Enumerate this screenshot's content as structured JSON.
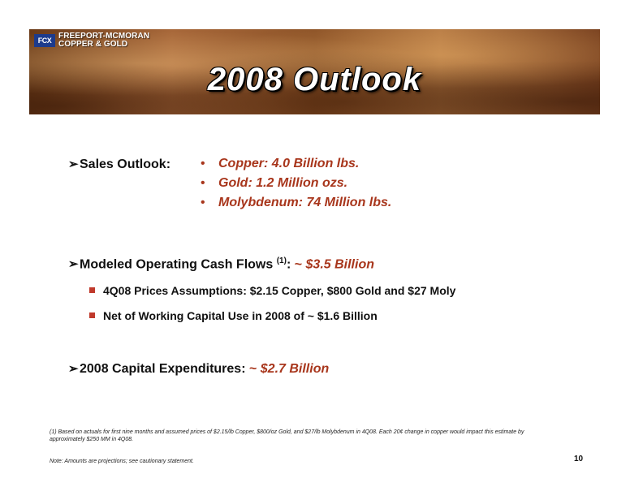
{
  "header": {
    "logo_mark": "FCX",
    "company_line1": "FREEPORT-MCMORAN",
    "company_line2": "COPPER & GOLD",
    "title": "2008 Outlook"
  },
  "sales": {
    "label": "Sales Outlook:",
    "items": [
      "Copper: 4.0 Billion lbs.",
      "Gold: 1.2 Million ozs.",
      "Molybdenum: 74 Million lbs."
    ]
  },
  "cash_flows": {
    "label": "Modeled Operating Cash Flows",
    "footnote_ref": "(1)",
    "colon": ":",
    "tilde": "~",
    "value": "$3.5 Billion",
    "sub_items": [
      "4Q08 Prices Assumptions: $2.15 Copper, $800 Gold and $27 Moly",
      "Net of Working Capital Use in 2008 of ~ $1.6 Billion"
    ]
  },
  "capex": {
    "label": "2008 Capital Expenditures:",
    "tilde": "~",
    "value": "$2.7 Billion"
  },
  "footnote": "(1) Based on actuals for first nine months and assumed prices of $2.15/lb Copper, $800/oz Gold, and $27/lb Molybdenum in 4Q08. Each 20¢ change in copper would impact this estimate by approximately $250 MM in 4Q08.",
  "note": "Note: Amounts are projections; see cautionary statement.",
  "page_number": "10"
}
